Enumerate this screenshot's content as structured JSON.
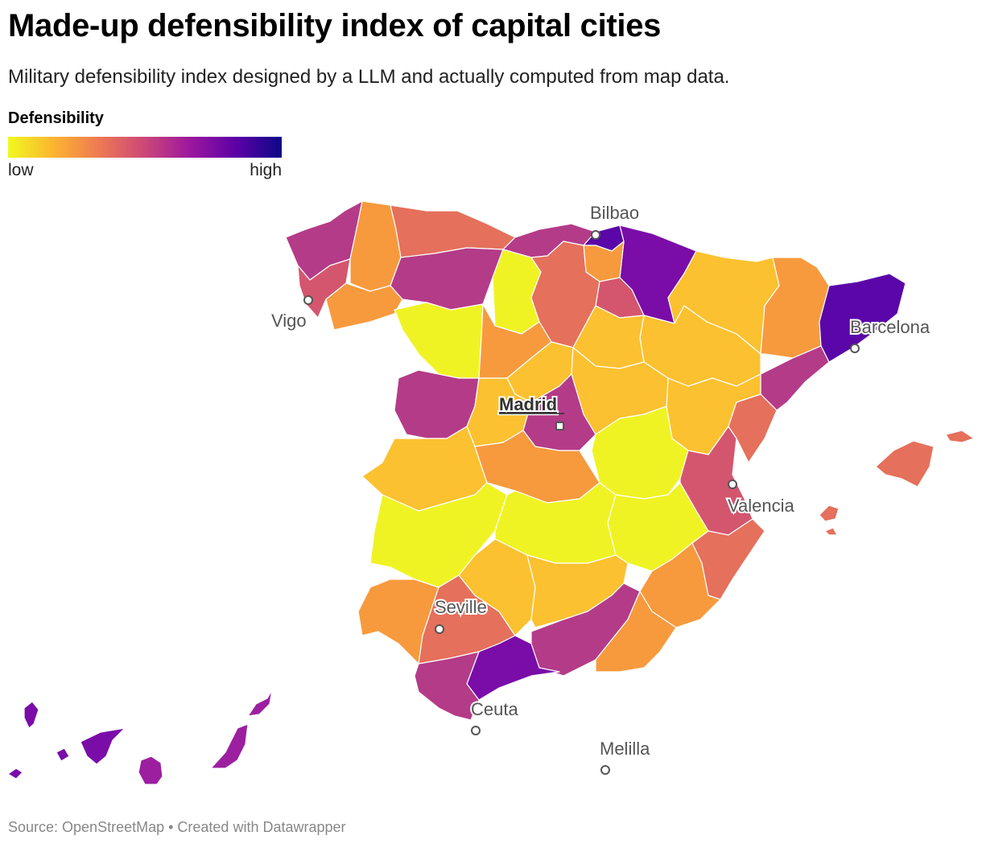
{
  "header": {
    "title": "Made-up defensibility index of capital cities",
    "subtitle": "Military defensibility index designed by a LLM and actually computed from map data."
  },
  "legend": {
    "title": "Defensibility",
    "low_label": "low",
    "high_label": "high",
    "gradient_colors": [
      "#f0f921",
      "#fdb42f",
      "#ed7953",
      "#cc4778",
      "#9c179e",
      "#5c01a6",
      "#0d0887"
    ]
  },
  "cities": {
    "bilbao": "Bilbao",
    "vigo": "Vigo",
    "barcelona": "Barcelona",
    "madrid": "Madrid",
    "valencia": "Valencia",
    "seville": "Seville",
    "ceuta": "Ceuta",
    "melilla": "Melilla"
  },
  "palette": {
    "yellow": "#f0f323",
    "light_orange": "#fbc130",
    "orange": "#f79a3e",
    "coral": "#e5705c",
    "rose": "#d4566e",
    "magenta": "#b43b88",
    "purple": "#9c1fa0",
    "deep_purple": "#7a0ca8",
    "indigo": "#5a06a8"
  },
  "footer": {
    "source": "Source: OpenStreetMap • Created with Datawrapper"
  }
}
